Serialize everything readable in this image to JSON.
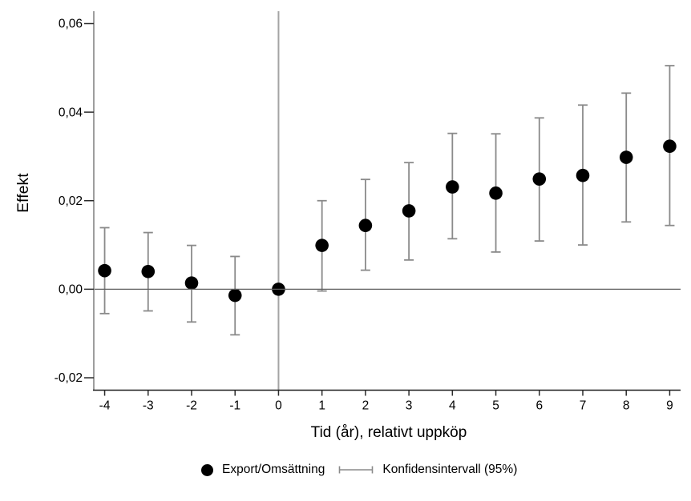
{
  "page": {
    "background": "#ffffff"
  },
  "chart_data": {
    "type": "scatter",
    "subtype": "event-study-with-error-bars",
    "title": "",
    "xlabel": "Tid (år), relativt uppköp",
    "ylabel": "Effekt",
    "x": [
      -4,
      -3,
      -2,
      -1,
      0,
      1,
      2,
      3,
      4,
      5,
      6,
      7,
      8,
      9
    ],
    "x_tick_labels": [
      "-4",
      "-3",
      "-2",
      "-1",
      "0",
      "1",
      "2",
      "3",
      "4",
      "5",
      "6",
      "7",
      "8",
      "9"
    ],
    "y_ticks": [
      -0.02,
      0.0,
      0.02,
      0.04,
      0.06
    ],
    "y_tick_labels": [
      "-0,02",
      "0,00",
      "0,02",
      "0,04",
      "0,06"
    ],
    "xlim": [
      -4.25,
      9.25
    ],
    "ylim": [
      -0.0228,
      0.0628
    ],
    "grid": false,
    "legend_position": "bottom",
    "reference_lines": {
      "vertical_x": 0,
      "horizontal_y": 0
    },
    "series": [
      {
        "name": "Export/Omsättning",
        "marker": "filled-circle",
        "color": "#000000",
        "values": [
          0.0042,
          0.004,
          0.0014,
          -0.0014,
          0.0,
          0.0099,
          0.0144,
          0.0177,
          0.0231,
          0.0217,
          0.0249,
          0.0257,
          0.0298,
          0.0323
        ],
        "ci_low": [
          -0.0055,
          -0.0049,
          -0.0074,
          -0.0103,
          null,
          -0.0004,
          0.0043,
          0.0066,
          0.0114,
          0.0084,
          0.0109,
          0.01,
          0.0152,
          0.0144
        ],
        "ci_high": [
          0.0139,
          0.0128,
          0.0099,
          0.0074,
          null,
          0.02,
          0.0248,
          0.0286,
          0.0352,
          0.0351,
          0.0387,
          0.0416,
          0.0443,
          0.0505
        ]
      }
    ],
    "legend": [
      {
        "label": "Export/Omsättning",
        "symbol": "filled-circle"
      },
      {
        "label": "Konfidensintervall (95%)",
        "symbol": "error-bar"
      }
    ],
    "colors": {
      "marker": "#000000",
      "ci": "#8a8a8a",
      "axis_x": "#1a1a1a",
      "axis_y": "#9e9e9e",
      "ref_line_v": "#a4a4a4",
      "ref_line_h": "#5f5f5f",
      "tick": "#2b2b2b",
      "text": "#000000"
    }
  }
}
